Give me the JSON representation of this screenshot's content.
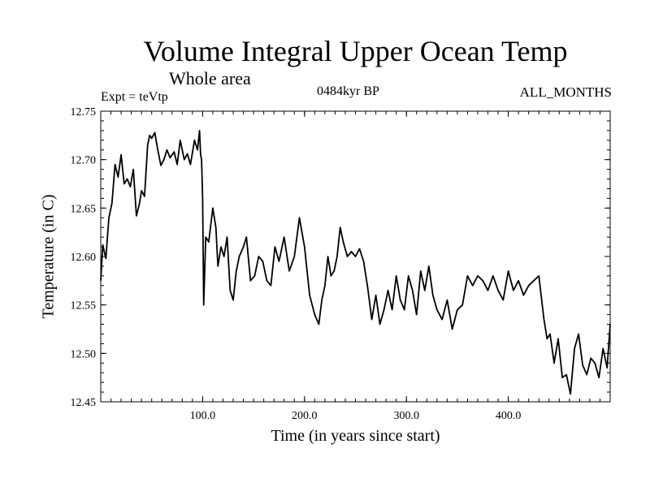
{
  "chart_data": {
    "type": "line",
    "title": "Volume Integral Upper Ocean Temp",
    "subtitle": "Whole area",
    "annotations": {
      "experiment": "Expt = teVtp",
      "period": "0484kyr BP",
      "months": "ALL_MONTHS"
    },
    "xlabel": "Time (in years since start)",
    "ylabel": "Temperature (in C)",
    "xlim": [
      0,
      500
    ],
    "ylim": [
      12.45,
      12.75
    ],
    "xticks": [
      100,
      200,
      300,
      400
    ],
    "xtick_labels": [
      "100.0",
      "200.0",
      "300.0",
      "400.0"
    ],
    "yticks": [
      12.45,
      12.5,
      12.55,
      12.6,
      12.65,
      12.7,
      12.75
    ],
    "ytick_labels": [
      "12.45",
      "12.50",
      "12.55",
      "12.60",
      "12.65",
      "12.70",
      "12.75"
    ],
    "grid": false,
    "series": [
      {
        "name": "Volume integral upper ocean temperature",
        "x": [
          0,
          2,
          5,
          8,
          11,
          14,
          17,
          20,
          23,
          26,
          29,
          32,
          35,
          38,
          40,
          43,
          46,
          48,
          50,
          53,
          56,
          59,
          62,
          65,
          68,
          72,
          75,
          78,
          82,
          85,
          88,
          92,
          95,
          97,
          98,
          99,
          100,
          101,
          103,
          106,
          110,
          113,
          115,
          118,
          121,
          124,
          127,
          130,
          133,
          136,
          140,
          143,
          147,
          151,
          155,
          159,
          163,
          167,
          171,
          175,
          180,
          185,
          190,
          195,
          200,
          205,
          210,
          214,
          217,
          220,
          223,
          226,
          229,
          232,
          235,
          238,
          242,
          246,
          250,
          254,
          258,
          262,
          266,
          270,
          274,
          278,
          282,
          286,
          290,
          294,
          298,
          302,
          306,
          310,
          314,
          318,
          322,
          326,
          330,
          335,
          340,
          345,
          350,
          355,
          360,
          365,
          370,
          375,
          380,
          385,
          390,
          395,
          400,
          405,
          410,
          415,
          420,
          425,
          430,
          435,
          438,
          441,
          445,
          449,
          453,
          457,
          461,
          465,
          469,
          473,
          477,
          481,
          485,
          489,
          493,
          497,
          500
        ],
        "values": [
          12.575,
          12.612,
          12.598,
          12.64,
          12.655,
          12.695,
          12.682,
          12.705,
          12.675,
          12.68,
          12.672,
          12.69,
          12.642,
          12.655,
          12.668,
          12.662,
          12.715,
          12.725,
          12.722,
          12.728,
          12.71,
          12.694,
          12.7,
          12.71,
          12.702,
          12.708,
          12.695,
          12.72,
          12.7,
          12.706,
          12.695,
          12.72,
          12.71,
          12.73,
          12.705,
          12.7,
          12.66,
          12.55,
          12.62,
          12.615,
          12.65,
          12.63,
          12.59,
          12.61,
          12.6,
          12.62,
          12.565,
          12.555,
          12.585,
          12.6,
          12.61,
          12.62,
          12.575,
          12.58,
          12.6,
          12.595,
          12.575,
          12.57,
          12.61,
          12.595,
          12.62,
          12.585,
          12.6,
          12.64,
          12.61,
          12.56,
          12.54,
          12.53,
          12.555,
          12.57,
          12.6,
          12.58,
          12.585,
          12.6,
          12.63,
          12.615,
          12.6,
          12.605,
          12.6,
          12.608,
          12.595,
          12.568,
          12.535,
          12.56,
          12.53,
          12.545,
          12.565,
          12.545,
          12.58,
          12.555,
          12.545,
          12.58,
          12.565,
          12.54,
          12.585,
          12.565,
          12.59,
          12.56,
          12.545,
          12.535,
          12.555,
          12.525,
          12.545,
          12.55,
          12.58,
          12.57,
          12.58,
          12.575,
          12.565,
          12.58,
          12.565,
          12.555,
          12.585,
          12.565,
          12.575,
          12.56,
          12.57,
          12.575,
          12.58,
          12.535,
          12.515,
          12.52,
          12.49,
          12.515,
          12.475,
          12.478,
          12.458,
          12.505,
          12.52,
          12.488,
          12.478,
          12.495,
          12.49,
          12.475,
          12.505,
          12.485,
          12.53
        ]
      }
    ]
  }
}
